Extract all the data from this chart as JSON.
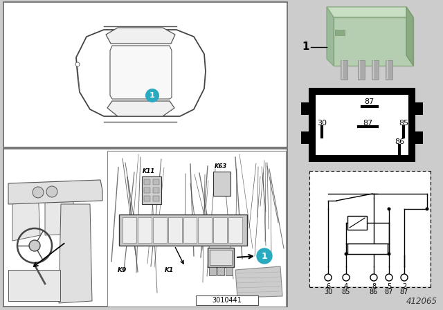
{
  "bg_color": "#cccccc",
  "white": "#ffffff",
  "black": "#000000",
  "teal": "#2aaabf",
  "relay_green": "#b8d4b0",
  "relay_green_dark": "#8aab82",
  "light_gray": "#e0e0e0",
  "dark_gray": "#555555",
  "figure_number": "412065",
  "diagram_number": "3010441",
  "part_number": "1",
  "fig_w": 6.4,
  "fig_h": 4.48,
  "dpi": 100
}
